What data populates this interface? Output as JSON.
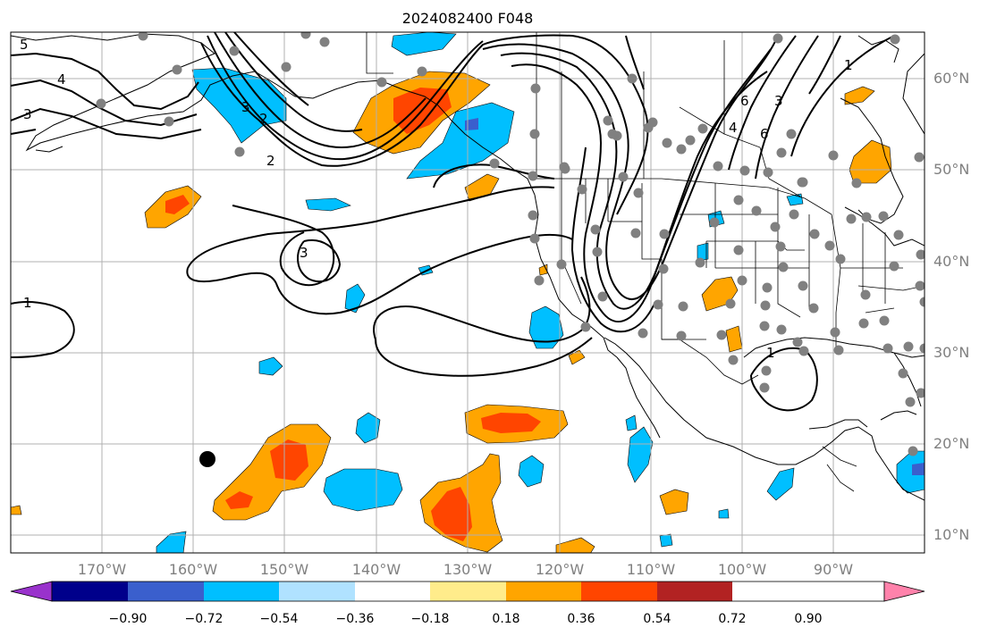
{
  "title": "2024082400 F048",
  "lon_labels": [
    "170°W",
    "160°W",
    "150°W",
    "140°W",
    "130°W",
    "120°W",
    "110°W",
    "100°W",
    "90°W"
  ],
  "lat_labels": [
    "60°N",
    "50°N",
    "40°N",
    "30°N",
    "20°N",
    "10°N"
  ],
  "contour_labels": [
    "5",
    "4",
    "3",
    "2",
    "2",
    "6",
    "4",
    "3",
    "6",
    "3",
    "1",
    "3",
    "1",
    "1"
  ],
  "colorbar": {
    "ticks": [
      "−0.90",
      "−0.72",
      "−0.54",
      "−0.36",
      "−0.18",
      "0.18",
      "0.36",
      "0.54",
      "0.72",
      "0.90"
    ],
    "colors": [
      "#9932cc",
      "#00008b",
      "#3a5fcd",
      "#00bfff",
      "#b0e2ff",
      "#ffffff",
      "#ffec8b",
      "#ffa500",
      "#ff4500",
      "#b22222",
      "#ff82ab"
    ]
  },
  "colors": {
    "neg_light": "#b0e2ff",
    "neg_mid": "#00bfff",
    "neg_strong": "#3a5fcd",
    "pos_light": "#ffec8b",
    "pos_mid": "#ffa500",
    "pos_strong": "#ff4500",
    "station": "#808080",
    "grid": "#b0b0b0"
  }
}
